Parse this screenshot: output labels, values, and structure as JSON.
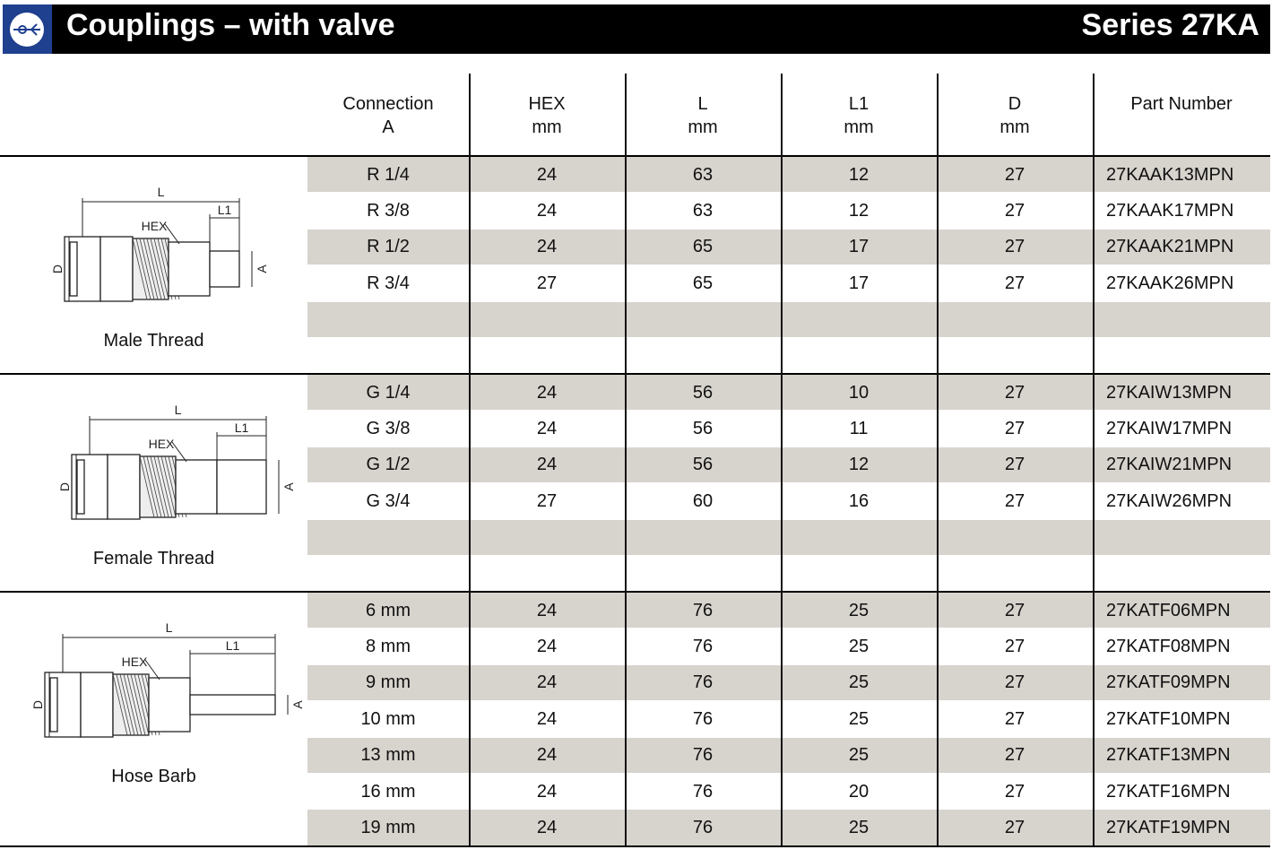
{
  "header": {
    "title": "Couplings – with valve",
    "series": "Series 27KA"
  },
  "table": {
    "columns": [
      {
        "line1": "Connection",
        "line2": "A"
      },
      {
        "line1": "HEX",
        "line2": "mm"
      },
      {
        "line1": "L",
        "line2": "mm"
      },
      {
        "line1": "L1",
        "line2": "mm"
      },
      {
        "line1": "D",
        "line2": "mm"
      },
      {
        "line1": "Part Number"
      }
    ],
    "sections": [
      {
        "label": "Male Thread",
        "diagram": {
          "L": "L",
          "HEX": "HEX",
          "L1": "L1",
          "D": "D",
          "A": "A"
        },
        "rows": [
          [
            "R 1/4",
            24,
            63,
            12,
            27,
            "27KAAK13MPN"
          ],
          [
            "R 3/8",
            24,
            63,
            12,
            27,
            "27KAAK17MPN"
          ],
          [
            "R 1/2",
            24,
            65,
            17,
            27,
            "27KAAK21MPN"
          ],
          [
            "R 3/4",
            27,
            65,
            17,
            27,
            "27KAAK26MPN"
          ]
        ]
      },
      {
        "label": "Female Thread",
        "diagram": {
          "L": "L",
          "HEX": "HEX",
          "L1": "L1",
          "D": "D",
          "A": "A"
        },
        "rows": [
          [
            "G 1/4",
            24,
            56,
            10,
            27,
            "27KAIW13MPN"
          ],
          [
            "G 3/8",
            24,
            56,
            11,
            27,
            "27KAIW17MPN"
          ],
          [
            "G 1/2",
            24,
            56,
            12,
            27,
            "27KAIW21MPN"
          ],
          [
            "G 3/4",
            27,
            60,
            16,
            27,
            "27KAIW26MPN"
          ]
        ]
      },
      {
        "label": "Hose Barb",
        "diagram": {
          "L": "L",
          "HEX": "HEX",
          "L1": "L1",
          "D": "D",
          "A": "A"
        },
        "rows": [
          [
            "6 mm",
            24,
            76,
            25,
            27,
            "27KATF06MPN"
          ],
          [
            "8 mm",
            24,
            76,
            25,
            27,
            "27KATF08MPN"
          ],
          [
            "9 mm",
            24,
            76,
            25,
            27,
            "27KATF09MPN"
          ],
          [
            "10 mm",
            24,
            76,
            25,
            27,
            "27KATF10MPN"
          ],
          [
            "13 mm",
            24,
            76,
            25,
            27,
            "27KATF13MPN"
          ],
          [
            "16 mm",
            24,
            76,
            20,
            27,
            "27KATF16MPN"
          ],
          [
            "19 mm",
            24,
            76,
            25,
            27,
            "27KATF19MPN"
          ]
        ]
      }
    ]
  }
}
